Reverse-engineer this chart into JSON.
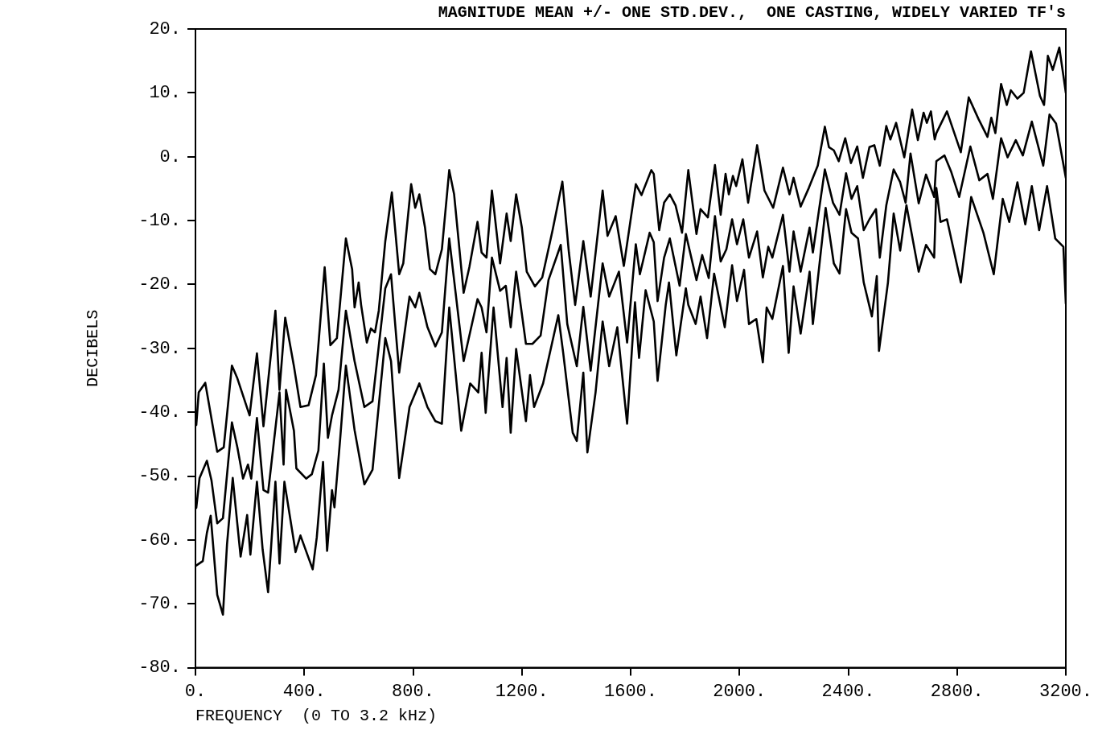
{
  "chart_data": {
    "type": "line",
    "title": "MAGNITUDE MEAN +/- ONE STD.DEV.,  ONE CASTING, WIDELY VARIED TF's",
    "xlabel": "FREQUENCY  (0 TO 3.2 kHz)",
    "ylabel": "DECIBELS",
    "xlim": [
      0,
      3200
    ],
    "ylim": [
      -80,
      20
    ],
    "xticks": [
      {
        "value": 0,
        "label": "0."
      },
      {
        "value": 400,
        "label": "400."
      },
      {
        "value": 800,
        "label": "800."
      },
      {
        "value": 1200,
        "label": "1200."
      },
      {
        "value": 1600,
        "label": "1600."
      },
      {
        "value": 2000,
        "label": "2000."
      },
      {
        "value": 2400,
        "label": "2400."
      },
      {
        "value": 2800,
        "label": "2800."
      },
      {
        "value": 3200,
        "label": "3200."
      }
    ],
    "yticks": [
      {
        "value": -80,
        "label": "-80."
      },
      {
        "value": -70,
        "label": "-70."
      },
      {
        "value": -60,
        "label": "-60."
      },
      {
        "value": -50,
        "label": "-50."
      },
      {
        "value": -40,
        "label": "-40."
      },
      {
        "value": -30,
        "label": "-30."
      },
      {
        "value": -20,
        "label": "-20."
      },
      {
        "value": -10,
        "label": "-10."
      },
      {
        "value": 0,
        "label": "0."
      },
      {
        "value": 10,
        "label": "10."
      },
      {
        "value": 20,
        "label": "20."
      }
    ],
    "grid": false,
    "legend": false,
    "marker": "none",
    "line_style": "solid",
    "series": [
      {
        "color": "#000000",
        "x": [
          3,
          12,
          36,
          80,
          104,
          134,
          154,
          199,
          226,
          250,
          294,
          309,
          330,
          362,
          386,
          416,
          443,
          475,
          496,
          520,
          553,
          576,
          585,
          600,
          609,
          630,
          645,
          660,
          674,
          698,
          722,
          749,
          764,
          793,
          808,
          823,
          844,
          862,
          882,
          906,
          933,
          951,
          986,
          1007,
          1037,
          1052,
          1070,
          1090,
          1120,
          1144,
          1159,
          1179,
          1200,
          1218,
          1248,
          1275,
          1313,
          1349,
          1373,
          1396,
          1426,
          1453,
          1497,
          1515,
          1545,
          1575,
          1619,
          1640,
          1676,
          1685,
          1705,
          1723,
          1744,
          1765,
          1789,
          1812,
          1842,
          1857,
          1884,
          1910,
          1931,
          1949,
          1961,
          1976,
          1988,
          2011,
          2032,
          2065,
          2092,
          2124,
          2160,
          2184,
          2199,
          2225,
          2255,
          2288,
          2314,
          2329,
          2347,
          2365,
          2389,
          2410,
          2433,
          2454,
          2478,
          2496,
          2516,
          2540,
          2555,
          2576,
          2606,
          2635,
          2656,
          2677,
          2689,
          2704,
          2718,
          2724,
          2763,
          2778,
          2814,
          2843,
          2879,
          2912,
          2926,
          2941,
          2962,
          2983,
          2998,
          3022,
          3045,
          3072,
          3105,
          3120,
          3134,
          3152,
          3176,
          3191,
          3200
        ],
        "values": [
          -42,
          -36.9,
          -35.4,
          -46.2,
          -45.5,
          -32.7,
          -34.7,
          -40.5,
          -30.8,
          -42.2,
          -24.1,
          -36.5,
          -25.2,
          -32.8,
          -39.2,
          -38.9,
          -34.2,
          -17.3,
          -29.5,
          -28.4,
          -12.8,
          -17.6,
          -23.6,
          -19.7,
          -23.2,
          -29.1,
          -26.9,
          -27.5,
          -24.1,
          -13.2,
          -5.6,
          -18.4,
          -16.7,
          -4.3,
          -8,
          -5.9,
          -11.1,
          -17.6,
          -18.4,
          -14.5,
          -2.1,
          -5.9,
          -21.3,
          -17.3,
          -10.2,
          -15,
          -15.8,
          -5.3,
          -16.7,
          -8.9,
          -13.2,
          -5.9,
          -11.1,
          -18,
          -20.3,
          -18.9,
          -11.5,
          -3.9,
          -15,
          -23.2,
          -13.2,
          -21.9,
          -5.3,
          -12.4,
          -9.3,
          -17.1,
          -4.3,
          -6,
          -2.1,
          -2.7,
          -11.5,
          -7.2,
          -5.9,
          -7.6,
          -11.9,
          -2.1,
          -12.1,
          -8.2,
          -9.5,
          -1.3,
          -9.1,
          -2.7,
          -5.9,
          -3,
          -4.6,
          -0.4,
          -7.2,
          1.8,
          -5.3,
          -8,
          -1.7,
          -5.9,
          -3.3,
          -7.8,
          -4.9,
          -1.4,
          4.7,
          1.5,
          1,
          -0.7,
          2.9,
          -1,
          1.6,
          -3.3,
          1.5,
          1.8,
          -1.4,
          4.8,
          2.7,
          5.3,
          -0.1,
          7.4,
          2.6,
          6.9,
          5.3,
          7.1,
          2.7,
          3.7,
          7.1,
          5.2,
          0.7,
          9.3,
          5.9,
          3.1,
          6.1,
          3.7,
          11.4,
          8.1,
          10.4,
          9.1,
          10,
          16.5,
          9.5,
          8.1,
          15.8,
          13.6,
          17.1,
          12.7,
          10
        ]
      },
      {
        "color": "#000000",
        "x": [
          3,
          15,
          42,
          59,
          80,
          101,
          134,
          154,
          175,
          193,
          205,
          226,
          250,
          267,
          309,
          324,
          333,
          362,
          371,
          407,
          428,
          452,
          472,
          487,
          502,
          526,
          553,
          585,
          621,
          651,
          698,
          719,
          749,
          787,
          808,
          823,
          853,
          882,
          906,
          933,
          986,
          1037,
          1052,
          1070,
          1090,
          1120,
          1141,
          1159,
          1179,
          1215,
          1239,
          1269,
          1298,
          1343,
          1367,
          1402,
          1426,
          1453,
          1497,
          1521,
          1557,
          1587,
          1619,
          1634,
          1670,
          1685,
          1699,
          1723,
          1744,
          1780,
          1803,
          1842,
          1863,
          1887,
          1910,
          1931,
          1952,
          1973,
          1991,
          2014,
          2035,
          2065,
          2086,
          2106,
          2121,
          2160,
          2184,
          2199,
          2225,
          2258,
          2270,
          2314,
          2344,
          2368,
          2392,
          2412,
          2433,
          2457,
          2478,
          2502,
          2516,
          2540,
          2567,
          2591,
          2611,
          2629,
          2659,
          2686,
          2716,
          2724,
          2754,
          2778,
          2808,
          2849,
          2882,
          2912,
          2932,
          2962,
          2986,
          3016,
          3042,
          3075,
          3117,
          3140,
          3164,
          3200
        ],
        "values": [
          -55,
          -50.3,
          -47.6,
          -50.7,
          -57.4,
          -56.6,
          -41.6,
          -45.5,
          -50.4,
          -48.2,
          -50.4,
          -40.9,
          -52.2,
          -52.6,
          -36.9,
          -48.2,
          -36.5,
          -42.9,
          -48.8,
          -50.4,
          -49.7,
          -46,
          -32.4,
          -44,
          -40.5,
          -36.5,
          -24.1,
          -32,
          -39.2,
          -38.3,
          -20.6,
          -18.4,
          -33.8,
          -21.9,
          -23.6,
          -21.3,
          -26.7,
          -29.7,
          -27.5,
          -12.8,
          -32,
          -22.3,
          -23.6,
          -27.5,
          -15.8,
          -21,
          -20.2,
          -26.7,
          -18,
          -29.3,
          -29.3,
          -28,
          -19.3,
          -13.8,
          -26.2,
          -32.8,
          -23.5,
          -33.5,
          -16.7,
          -21.9,
          -18,
          -29.1,
          -13.7,
          -18.4,
          -11.9,
          -13.4,
          -22.6,
          -15.8,
          -12.8,
          -20.2,
          -12.1,
          -19.3,
          -15.4,
          -19,
          -9.3,
          -16.4,
          -14.5,
          -9.8,
          -13.7,
          -9.8,
          -15.8,
          -11.7,
          -18.9,
          -14.1,
          -15.8,
          -9.1,
          -18,
          -11.7,
          -18,
          -11.1,
          -15,
          -2,
          -7.2,
          -9.1,
          -2.6,
          -6.6,
          -4.6,
          -11.5,
          -9.8,
          -8.2,
          -15.8,
          -7.6,
          -2,
          -4,
          -7.2,
          0.5,
          -7.3,
          -2.8,
          -6.3,
          -0.7,
          0.2,
          -2.3,
          -6.3,
          1.6,
          -3.7,
          -2.7,
          -6.6,
          2.9,
          -0.1,
          2.6,
          0.2,
          5.5,
          -1.4,
          6.6,
          5.2,
          -3.3
        ]
      },
      {
        "color": "#000000",
        "x": [
          3,
          27,
          42,
          56,
          80,
          101,
          116,
          137,
          166,
          190,
          202,
          226,
          247,
          267,
          294,
          309,
          327,
          368,
          386,
          431,
          446,
          469,
          484,
          502,
          511,
          532,
          553,
          585,
          621,
          651,
          698,
          719,
          749,
          787,
          823,
          853,
          882,
          906,
          933,
          977,
          1010,
          1040,
          1052,
          1067,
          1096,
          1129,
          1144,
          1159,
          1179,
          1215,
          1230,
          1245,
          1278,
          1334,
          1352,
          1387,
          1402,
          1426,
          1441,
          1471,
          1497,
          1521,
          1551,
          1587,
          1616,
          1631,
          1655,
          1685,
          1699,
          1729,
          1741,
          1768,
          1803,
          1812,
          1839,
          1857,
          1881,
          1907,
          1946,
          1973,
          1991,
          2017,
          2035,
          2062,
          2086,
          2100,
          2121,
          2160,
          2181,
          2199,
          2225,
          2258,
          2270,
          2317,
          2347,
          2368,
          2392,
          2412,
          2436,
          2457,
          2487,
          2505,
          2513,
          2546,
          2567,
          2591,
          2614,
          2659,
          2686,
          2716,
          2724,
          2739,
          2763,
          2814,
          2852,
          2897,
          2935,
          2968,
          2992,
          3022,
          3051,
          3075,
          3102,
          3131,
          3161,
          3191,
          3200
        ],
        "values": [
          -64,
          -63.3,
          -58.9,
          -56.2,
          -68.6,
          -71.7,
          -60.7,
          -50.3,
          -62.6,
          -56.1,
          -62.3,
          -50.9,
          -61.5,
          -68.2,
          -50.9,
          -63.7,
          -50.9,
          -61.9,
          -59.3,
          -64.6,
          -59.6,
          -47.8,
          -61.7,
          -52.2,
          -54.9,
          -44.2,
          -32.7,
          -42.8,
          -51.3,
          -49,
          -28.4,
          -32,
          -50.3,
          -39.2,
          -35.5,
          -39.2,
          -41.4,
          -41.8,
          -23.6,
          -42.9,
          -35.5,
          -36.9,
          -30.7,
          -40.1,
          -23.6,
          -39.2,
          -31.5,
          -43.2,
          -30.1,
          -41.4,
          -34.2,
          -39.2,
          -35.5,
          -24.8,
          -30.7,
          -43.2,
          -44.5,
          -33.8,
          -46.3,
          -36.9,
          -25.8,
          -32.8,
          -26.7,
          -41.8,
          -22.8,
          -31.5,
          -20.9,
          -25.8,
          -35.1,
          -23.2,
          -19.7,
          -31.1,
          -20.6,
          -23.2,
          -26.2,
          -21.9,
          -28.4,
          -18.3,
          -26.7,
          -17,
          -22.6,
          -17.7,
          -26.2,
          -25.4,
          -32.2,
          -23.6,
          -25.4,
          -17.1,
          -30.7,
          -20.3,
          -27.7,
          -18,
          -26.2,
          -8,
          -16.7,
          -18.3,
          -8.2,
          -11.9,
          -12.8,
          -19.7,
          -25,
          -18.7,
          -30.4,
          -19.7,
          -8.9,
          -14.7,
          -7.6,
          -18,
          -13.8,
          -15.8,
          -4.9,
          -10.2,
          -9.8,
          -19.7,
          -6.3,
          -11.9,
          -18.4,
          -6.6,
          -10.2,
          -4,
          -10.6,
          -4.6,
          -11.5,
          -4.6,
          -12.8,
          -14.1,
          -23
        ]
      }
    ]
  }
}
